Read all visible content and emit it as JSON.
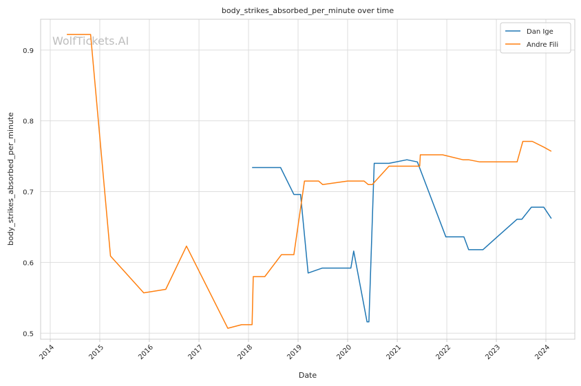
{
  "chart_data": {
    "type": "line",
    "title": "body_strikes_absorbed_per_minute over time",
    "xlabel": "Date",
    "ylabel": "body_strikes_absorbed_per_minute",
    "watermark": "WolfTickets.AI",
    "xlim": [
      "2013-10-22",
      "2024-08-01"
    ],
    "ylim": [
      0.4915,
      0.9435
    ],
    "x_ticks": [
      "2014",
      "2015",
      "2016",
      "2017",
      "2018",
      "2019",
      "2020",
      "2021",
      "2022",
      "2023",
      "2024"
    ],
    "y_ticks": [
      "0.5",
      "0.6",
      "0.7",
      "0.8",
      "0.9"
    ],
    "grid": true,
    "legend_position": "top-right",
    "series": [
      {
        "name": "Dan Ige",
        "color": "#1f77b4",
        "x": [
          "2018-01-27",
          "2018-06-01",
          "2018-08-25",
          "2018-12-01",
          "2019-01-19",
          "2019-03-16",
          "2019-06-29",
          "2019-10-01",
          "2020-01-25",
          "2020-02-15",
          "2020-05-23",
          "2020-06-06",
          "2020-07-15",
          "2020-11-01",
          "2021-03-13",
          "2021-05-29",
          "2021-12-25",
          "2022-05-07",
          "2022-06-11",
          "2022-09-24",
          "2023-01-01",
          "2023-06-03",
          "2023-07-08",
          "2023-09-16",
          "2023-12-16",
          "2024-02-10"
        ],
        "y": [
          0.734,
          0.734,
          0.734,
          0.696,
          0.696,
          0.585,
          0.592,
          0.592,
          0.592,
          0.616,
          0.516,
          0.516,
          0.74,
          0.74,
          0.745,
          0.742,
          0.636,
          0.636,
          0.618,
          0.618,
          0.635,
          0.661,
          0.661,
          0.678,
          0.678,
          0.662
        ]
      },
      {
        "name": "Andre Fili",
        "color": "#ff7f0e",
        "x": [
          "2014-05-03",
          "2014-08-01",
          "2014-10-25",
          "2015-03-21",
          "2015-11-21",
          "2016-05-01",
          "2016-10-01",
          "2017-08-01",
          "2017-11-11",
          "2018-01-27",
          "2018-02-05",
          "2018-05-01",
          "2018-09-01",
          "2018-12-01",
          "2019-02-17",
          "2019-06-01",
          "2019-07-01",
          "2020-01-01",
          "2020-05-01",
          "2020-06-01",
          "2020-07-01",
          "2020-11-01",
          "2021-06-15",
          "2021-06-20",
          "2021-12-01",
          "2022-04-30",
          "2022-06-11",
          "2022-09-01",
          "2023-01-01",
          "2023-06-03",
          "2023-07-15",
          "2023-09-23",
          "2023-12-15",
          "2024-02-10"
        ],
        "y": [
          0.922,
          0.922,
          0.922,
          0.609,
          0.557,
          0.562,
          0.623,
          0.507,
          0.512,
          0.512,
          0.58,
          0.58,
          0.611,
          0.611,
          0.715,
          0.715,
          0.71,
          0.715,
          0.715,
          0.71,
          0.71,
          0.736,
          0.736,
          0.752,
          0.752,
          0.745,
          0.745,
          0.742,
          0.742,
          0.742,
          0.771,
          0.771,
          0.763,
          0.757
        ]
      }
    ]
  }
}
